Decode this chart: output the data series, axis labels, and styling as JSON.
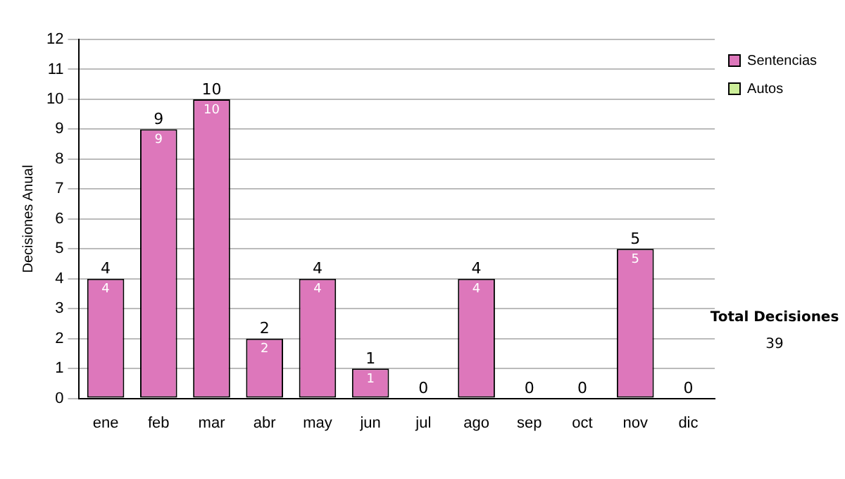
{
  "chart_data": {
    "type": "bar",
    "ylabel": "Decisiones Anual",
    "stacked": true,
    "categories": [
      "ene",
      "feb",
      "mar",
      "abr",
      "may",
      "jun",
      "jul",
      "ago",
      "sep",
      "oct",
      "nov",
      "dic"
    ],
    "series": [
      {
        "name": "Sentencias",
        "color": "#dd77bb",
        "values": [
          4,
          9,
          10,
          2,
          4,
          1,
          0,
          4,
          0,
          0,
          5,
          0
        ],
        "value_labels": [
          "4",
          "9",
          "10",
          "2",
          "4",
          "1",
          null,
          "4",
          null,
          null,
          "5",
          null
        ]
      },
      {
        "name": "Autos",
        "color": "#ccee99",
        "values": [
          0,
          0,
          0,
          0,
          0,
          0,
          0,
          0,
          0,
          0,
          0,
          0
        ]
      }
    ],
    "totals": [
      "4",
      "9",
      "10",
      "2",
      "4",
      "1",
      "0",
      "4",
      "0",
      "0",
      "5",
      "0"
    ],
    "ylim": [
      0,
      12
    ],
    "yticks": [
      0,
      1,
      2,
      3,
      4,
      5,
      6,
      7,
      8,
      9,
      10,
      11,
      12
    ],
    "grid": "y",
    "legend": "right",
    "annotations": [
      "Total Decisiones",
      "39"
    ]
  }
}
